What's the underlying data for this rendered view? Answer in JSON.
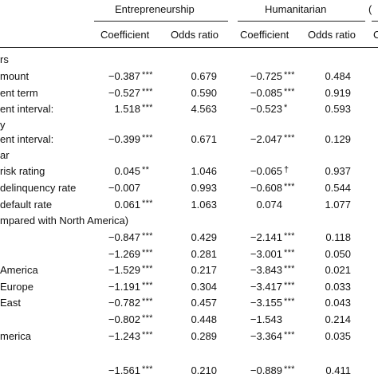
{
  "header": {
    "group1": "Entrepreneurship",
    "group2": "Humanitarian",
    "group3_partial": "(",
    "cols": [
      "Coefficient",
      "Odds ratio",
      "Coefficient",
      "Odds ratio",
      "C"
    ]
  },
  "rows": [
    {
      "label": "rs",
      "c1": "",
      "s1": "",
      "c2": "",
      "c3": "",
      "s3": "",
      "c4": ""
    },
    {
      "label": "mount",
      "c1": "−0.387",
      "s1": "***",
      "c2": "0.679",
      "c3": "−0.725",
      "s3": "***",
      "c4": "0.484"
    },
    {
      "label": "ent term",
      "c1": "−0.527",
      "s1": "***",
      "c2": "0.590",
      "c3": "−0.085",
      "s3": "***",
      "c4": "0.919"
    },
    {
      "label": "ent interval:",
      "c1": "1.518",
      "s1": "***",
      "c2": "4.563",
      "c3": "−0.523",
      "s3": "*",
      "c4": "0.593"
    },
    {
      "label": "y",
      "c1": "",
      "s1": "",
      "c2": "",
      "c3": "",
      "s3": "",
      "c4": ""
    },
    {
      "label": "ent interval:",
      "c1": "−0.399",
      "s1": "***",
      "c2": "0.671",
      "c3": "−2.047",
      "s3": "***",
      "c4": "0.129"
    },
    {
      "label": "ar",
      "c1": "",
      "s1": "",
      "c2": "",
      "c3": "",
      "s3": "",
      "c4": ""
    },
    {
      "label": "risk rating",
      "c1": "0.045",
      "s1": "**",
      "c2": "1.046",
      "c3": "−0.065",
      "s3": "†",
      "c4": "0.937"
    },
    {
      "label": "delinquency rate",
      "c1": "−0.007",
      "s1": "",
      "c2": "0.993",
      "c3": "−0.608",
      "s3": "***",
      "c4": "0.544"
    },
    {
      "label": "default rate",
      "c1": "0.061",
      "s1": "***",
      "c2": "1.063",
      "c3": "0.074",
      "s3": "",
      "c4": "1.077"
    },
    {
      "label": "mpared with North America)",
      "c1": "",
      "s1": "",
      "c2": "",
      "c3": "",
      "s3": "",
      "c4": ""
    },
    {
      "label": "",
      "c1": "−0.847",
      "s1": "***",
      "c2": "0.429",
      "c3": "−2.141",
      "s3": "***",
      "c4": "0.118"
    },
    {
      "label": "",
      "c1": "−1.269",
      "s1": "***",
      "c2": "0.281",
      "c3": "−3.001",
      "s3": "***",
      "c4": "0.050"
    },
    {
      "label": "America",
      "c1": "−1.529",
      "s1": "***",
      "c2": "0.217",
      "c3": "−3.843",
      "s3": "***",
      "c4": "0.021"
    },
    {
      "label": "Europe",
      "c1": "−1.191",
      "s1": "***",
      "c2": "0.304",
      "c3": "−3.417",
      "s3": "***",
      "c4": "0.033"
    },
    {
      "label": "East",
      "c1": "−0.782",
      "s1": "***",
      "c2": "0.457",
      "c3": "−3.155",
      "s3": "***",
      "c4": "0.043"
    },
    {
      "label": "",
      "c1": "−0.802",
      "s1": "***",
      "c2": "0.448",
      "c3": "−1.543",
      "s3": "",
      "c4": "0.214"
    },
    {
      "label": "merica",
      "c1": "−1.243",
      "s1": "***",
      "c2": "0.289",
      "c3": "−3.364",
      "s3": "***",
      "c4": "0.035"
    },
    {
      "label": "",
      "c1": "",
      "s1": "",
      "c2": "",
      "c3": "",
      "s3": "",
      "c4": ""
    },
    {
      "label": "",
      "c1": "−1.561",
      "s1": "***",
      "c2": "0.210",
      "c3": "−0.889",
      "s3": "***",
      "c4": "0.411"
    }
  ]
}
